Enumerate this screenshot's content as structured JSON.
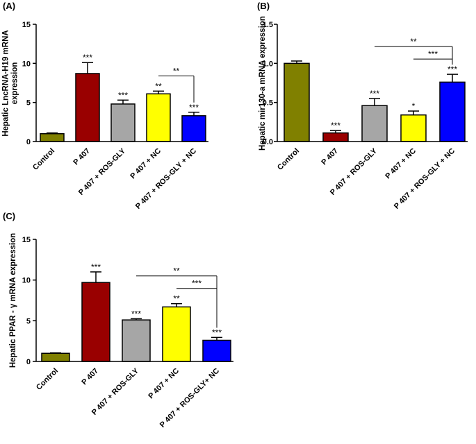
{
  "chart_data": [
    {
      "panel_label": "(A)",
      "type": "bar",
      "ylabel_lines": [
        "Hepatic LncRNA-H19 mRNA",
        "expression"
      ],
      "xlabel": "",
      "ylim": [
        0,
        15
      ],
      "yticks": [
        "0",
        "5",
        "10",
        "15"
      ],
      "categories": [
        "Control",
        "P 407",
        "P 407 + ROS-GLY",
        "P 407 + NC",
        "P 407 + ROS-GLY + NC"
      ],
      "values": [
        1.0,
        8.7,
        4.8,
        6.1,
        3.3
      ],
      "errors": [
        0.1,
        1.4,
        0.5,
        0.35,
        0.45
      ],
      "colors": [
        "#808000",
        "#990000",
        "#a6a6a6",
        "#ffff00",
        "#0000ff"
      ],
      "significance": [
        "",
        "***",
        "***",
        "**",
        "***"
      ],
      "brackets": [
        {
          "from": 3,
          "to": 4,
          "label": "**"
        }
      ]
    },
    {
      "panel_label": "(B)",
      "type": "bar",
      "ylabel_lines": [
        "Hepatic mir130-a mRNA expression"
      ],
      "xlabel": "",
      "ylim": [
        0,
        1.5
      ],
      "yticks": [
        "0.0",
        "0.5",
        "1.0",
        "1.5"
      ],
      "categories": [
        "Control",
        "P 407",
        "P 407 + ROS-GLY",
        "P 407 + NC",
        "P 407 + ROS-GLY + NC"
      ],
      "values": [
        1.0,
        0.11,
        0.46,
        0.34,
        0.76
      ],
      "errors": [
        0.03,
        0.03,
        0.09,
        0.05,
        0.1
      ],
      "colors": [
        "#808000",
        "#990000",
        "#a6a6a6",
        "#ffff00",
        "#0000ff"
      ],
      "significance": [
        "",
        "***",
        "***",
        "*",
        "***"
      ],
      "brackets": [
        {
          "from": 2,
          "to": 4,
          "label": "**"
        },
        {
          "from": 3,
          "to": 4,
          "label": "***"
        }
      ]
    },
    {
      "panel_label": "(C)",
      "type": "bar",
      "ylabel_lines": [
        "Hepatic PPAR - γ mRNA expression"
      ],
      "xlabel": "",
      "ylim": [
        0,
        15
      ],
      "yticks": [
        "0",
        "5",
        "10",
        "15"
      ],
      "categories": [
        "Control",
        "P 407",
        "P 407 + ROS-GLY",
        "P 407 + NC",
        "P 407 + ROS-GLY+ NC"
      ],
      "values": [
        1.0,
        9.7,
        5.1,
        6.7,
        2.6
      ],
      "errors": [
        0.05,
        1.3,
        0.15,
        0.4,
        0.35
      ],
      "colors": [
        "#808000",
        "#990000",
        "#a6a6a6",
        "#ffff00",
        "#0000ff"
      ],
      "significance": [
        "",
        "***",
        "***",
        "**",
        "***"
      ],
      "brackets": [
        {
          "from": 2,
          "to": 4,
          "label": "**"
        },
        {
          "from": 3,
          "to": 4,
          "label": "***"
        }
      ]
    }
  ]
}
